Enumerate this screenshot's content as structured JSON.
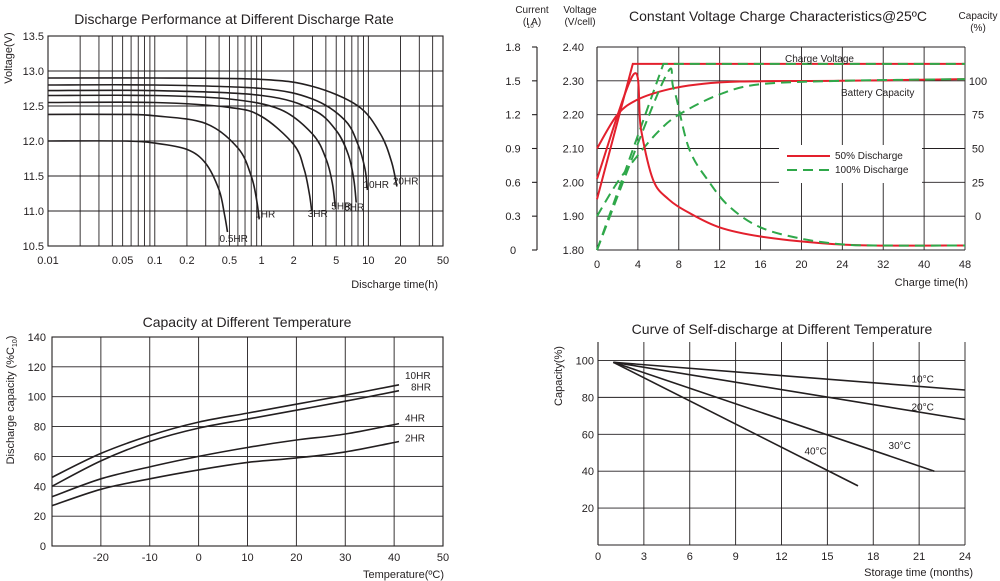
{
  "chart_data": [
    {
      "id": "discharge",
      "type": "line",
      "title": "Discharge Performance at Different Discharge Rate",
      "xlabel": "Discharge time(h)",
      "ylabel": "Voltage(V)",
      "xscale": "log",
      "xlim": [
        0.01,
        50
      ],
      "ylim": [
        10.5,
        13.5
      ],
      "xticks": [
        0.01,
        0.05,
        0.1,
        0.2,
        0.5,
        1,
        2,
        5,
        10,
        20,
        50
      ],
      "xtick_labels": [
        "0.01",
        "0.05",
        "0.1",
        "0.2",
        "0.5",
        "1",
        "2",
        "5",
        "10",
        "20",
        "50"
      ],
      "yticks": [
        10.5,
        11.0,
        11.5,
        12.0,
        12.5,
        13.0,
        13.5
      ],
      "ytick_labels": [
        "10.5",
        "11.0",
        "11.5",
        "12.0",
        "12.5",
        "13.0",
        "13.5"
      ],
      "series": [
        {
          "name": "0.5HR",
          "x": [
            0.01,
            0.05,
            0.1,
            0.2,
            0.3,
            0.4,
            0.45,
            0.48
          ],
          "y": [
            12.0,
            12.0,
            11.97,
            11.88,
            11.68,
            11.3,
            10.95,
            10.7
          ]
        },
        {
          "name": "1HR",
          "x": [
            0.01,
            0.05,
            0.1,
            0.3,
            0.6,
            0.8,
            0.9,
            0.95
          ],
          "y": [
            12.38,
            12.38,
            12.36,
            12.25,
            11.9,
            11.5,
            11.15,
            10.88
          ]
        },
        {
          "name": "3HR",
          "x": [
            0.01,
            0.1,
            0.5,
            1.0,
            2.0,
            2.5,
            2.8,
            2.95
          ],
          "y": [
            12.55,
            12.55,
            12.48,
            12.35,
            11.95,
            11.6,
            11.25,
            11.0
          ]
        },
        {
          "name": "5HR",
          "x": [
            0.01,
            0.1,
            0.5,
            1.5,
            3.0,
            4.0,
            4.6,
            4.9
          ],
          "y": [
            12.65,
            12.65,
            12.6,
            12.45,
            12.1,
            11.75,
            11.4,
            11.05
          ]
        },
        {
          "name": "8HR",
          "x": [
            0.01,
            0.1,
            1.0,
            3.0,
            5.0,
            6.5,
            7.3,
            7.7
          ],
          "y": [
            12.72,
            12.72,
            12.65,
            12.45,
            12.15,
            11.8,
            11.45,
            11.12
          ]
        },
        {
          "name": "10HR",
          "x": [
            0.01,
            0.1,
            1.0,
            3.0,
            6.0,
            8.0,
            9.3,
            9.8
          ],
          "y": [
            12.8,
            12.8,
            12.75,
            12.6,
            12.3,
            11.95,
            11.6,
            11.3
          ]
        },
        {
          "name": "20HR",
          "x": [
            0.01,
            0.1,
            1.0,
            3.0,
            8.0,
            13.0,
            16.5,
            18.5
          ],
          "y": [
            12.9,
            12.9,
            12.88,
            12.78,
            12.5,
            12.1,
            11.7,
            11.35
          ]
        }
      ],
      "curve_labels": [
        "0.5HR",
        "1HR",
        "3HR",
        "5HR",
        "8HR",
        "10HR",
        "20HR"
      ]
    },
    {
      "id": "charge",
      "type": "line",
      "title": "Constant Voltage Charge Characteristics@25ºC",
      "xlabel": "Charge time(h)",
      "left_axis_current": {
        "label": "Current",
        "label_sub": "(I   A)",
        "sub_index": "10",
        "ticks": [
          "1.8",
          "1.5",
          "1.2",
          "0.9",
          "0.6",
          "0.3",
          "0"
        ]
      },
      "left_axis_voltage": {
        "label": "Voltage",
        "label_sub": "(V/cell)",
        "ticks": [
          "2.40",
          "2.30",
          "2.20",
          "2.10",
          "2.00",
          "1.90",
          "1.80"
        ]
      },
      "right_axis_capacity": {
        "label": "Capacity",
        "label_sub": "(%)",
        "ticks": [
          "100",
          "75",
          "50",
          "25",
          "0"
        ]
      },
      "xtick_labels": [
        "0",
        "4",
        "8",
        "12",
        "16",
        "20",
        "24",
        "32",
        "40",
        "48"
      ],
      "voltage_range": [
        1.8,
        2.4
      ],
      "annotations": {
        "charge_voltage": "Charge Voltage",
        "battery_capacity": "Battery Capacity"
      },
      "legend": [
        {
          "label": "50% Discharge",
          "style": "solid",
          "color": "#e3202d"
        },
        {
          "label": "100% Discharge",
          "style": "dashed",
          "color": "#2fa84a"
        }
      ],
      "series": [
        {
          "name": "Charge Voltage 50%",
          "x": [
            0,
            3.5,
            40,
            48
          ],
          "y": [
            1.95,
            2.35,
            2.35,
            2.35
          ]
        },
        {
          "name": "Charge Voltage 100%",
          "x": [
            0,
            6.5,
            40,
            48
          ],
          "y": [
            1.8,
            2.35,
            2.35,
            2.35
          ]
        },
        {
          "name": "Battery Capacity 50%",
          "x": [
            0,
            2,
            4,
            7,
            10,
            14,
            24,
            48
          ],
          "y": [
            2.1,
            2.2,
            2.245,
            2.275,
            2.29,
            2.298,
            2.3,
            2.305
          ]
        },
        {
          "name": "Battery Capacity 100%",
          "x": [
            0,
            2,
            4,
            6,
            8,
            12,
            16,
            24,
            48
          ],
          "y": [
            1.9,
            2.0,
            2.08,
            2.15,
            2.2,
            2.26,
            2.29,
            2.3,
            2.305
          ]
        },
        {
          "name": "Current 50%",
          "x": [
            0,
            3.6,
            4.3,
            5.5,
            7,
            9,
            12,
            16,
            22,
            30,
            48
          ],
          "y": [
            0.63,
            1.56,
            1.07,
            0.62,
            0.45,
            0.33,
            0.2,
            0.12,
            0.06,
            0.04,
            0.04
          ]
        },
        {
          "name": "Current 100%",
          "x": [
            0,
            6.5,
            7.5,
            9,
            11,
            13,
            16,
            20,
            24,
            32,
            48
          ],
          "y": [
            0.0,
            1.5,
            1.43,
            0.9,
            0.6,
            0.38,
            0.2,
            0.1,
            0.05,
            0.04,
            0.04
          ]
        }
      ]
    },
    {
      "id": "temperature",
      "type": "line",
      "title": "Capacity at Different Temperature",
      "xlabel": "Temperature(ºC)",
      "ylabel": "Discharge capacity (%C",
      "ylabel_sub": "10",
      "ylabel_close": ")",
      "xlim": [
        -30,
        50
      ],
      "ylim": [
        0,
        140
      ],
      "xtick_labels": [
        "-20",
        "-10",
        "0",
        "10",
        "20",
        "30",
        "40",
        "50"
      ],
      "ytick_labels": [
        "0",
        "20",
        "40",
        "60",
        "80",
        "100",
        "120",
        "140"
      ],
      "series": [
        {
          "name": "10HR",
          "x": [
            -30,
            -20,
            -10,
            0,
            10,
            20,
            30,
            41
          ],
          "y": [
            46,
            62,
            74,
            83,
            89,
            95,
            101,
            108
          ]
        },
        {
          "name": "8HR",
          "x": [
            -30,
            -20,
            -10,
            0,
            10,
            20,
            30,
            41
          ],
          "y": [
            40,
            57,
            70,
            79,
            85,
            91,
            97,
            104
          ]
        },
        {
          "name": "4HR",
          "x": [
            -30,
            -20,
            -10,
            0,
            10,
            20,
            30,
            41
          ],
          "y": [
            33,
            45,
            53,
            60,
            66,
            71,
            75,
            82
          ]
        },
        {
          "name": "2HR",
          "x": [
            -30,
            -20,
            -10,
            0,
            10,
            20,
            30,
            41
          ],
          "y": [
            27,
            38,
            45,
            51,
            56,
            59,
            63,
            70
          ]
        }
      ]
    },
    {
      "id": "selfdischarge",
      "type": "line",
      "title": "Curve of Self-discharge at Different Temperature",
      "xlabel": "Storage time (months)",
      "ylabel": "Capacity(%)",
      "xlim": [
        0,
        24
      ],
      "ylim": [
        0,
        100
      ],
      "xtick_labels": [
        "0",
        "3",
        "6",
        "9",
        "12",
        "15",
        "18",
        "21",
        "24"
      ],
      "ytick_labels": [
        "20",
        "40",
        "60",
        "80",
        "100"
      ],
      "series": [
        {
          "name": "10°C",
          "x": [
            1,
            24
          ],
          "y": [
            99,
            84
          ]
        },
        {
          "name": "20°C",
          "x": [
            1,
            24
          ],
          "y": [
            99,
            68
          ]
        },
        {
          "name": "30°C",
          "x": [
            1,
            22
          ],
          "y": [
            99,
            40
          ]
        },
        {
          "name": "40°C",
          "x": [
            1,
            17
          ],
          "y": [
            99,
            32
          ]
        }
      ]
    }
  ]
}
